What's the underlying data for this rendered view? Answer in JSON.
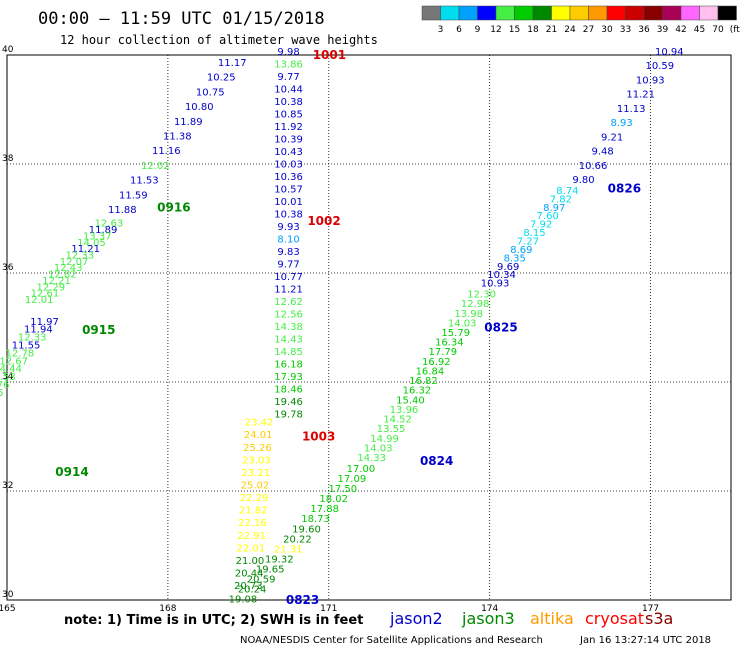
{
  "title": "00:00 — 11:59 UTC 01/15/2018",
  "subtitle": "12 hour collection of altimeter wave heights",
  "scale": {
    "labels": [
      "3",
      "6",
      "9",
      "12",
      "15",
      "18",
      "21",
      "24",
      "27",
      "30",
      "33",
      "36",
      "39",
      "42",
      "45",
      "70",
      "(ft)"
    ],
    "colors": [
      "#777777",
      "#00ddee",
      "#00a0ff",
      "#0000ff",
      "#44ee44",
      "#00cc00",
      "#008800",
      "#ffff00",
      "#ffcc00",
      "#ff9900",
      "#ff0000",
      "#cc0000",
      "#880000",
      "#aa0055",
      "#ff66ff",
      "#ffc0ee",
      "#000000"
    ]
  },
  "axes": {
    "x_ticks": [
      "165",
      "168",
      "171",
      "174",
      "177"
    ],
    "y_ticks": [
      "30",
      "32",
      "34",
      "36",
      "38",
      "40"
    ]
  },
  "note": "note:  1) Time is in UTC;  2) SWH is in feet",
  "satellites": [
    {
      "name": "jason2",
      "color": "#0000cc"
    },
    {
      "name": "jason3",
      "color": "#008800"
    },
    {
      "name": "altika",
      "color": "#ff9900"
    },
    {
      "name": "cryosat",
      "color": "#ff0000"
    },
    {
      "name": "s3a",
      "color": "#880000"
    }
  ],
  "footer_left": "NOAA/NESDIS Center for Satellite Applications and Research",
  "footer_right": "Jan 16 13:27:14 UTC 2018",
  "chart_data": {
    "type": "table",
    "x_range": [
      165,
      178.5
    ],
    "y_range": [
      30,
      40
    ],
    "pass_labels": [
      {
        "text": "1001",
        "lon": 170.7,
        "lat": 40.0,
        "color": "#dd0000"
      },
      {
        "text": "1002",
        "lon": 170.6,
        "lat": 36.95,
        "color": "#dd0000"
      },
      {
        "text": "1003",
        "lon": 170.5,
        "lat": 33.0,
        "color": "#dd0000"
      },
      {
        "text": "0916",
        "lon": 167.8,
        "lat": 37.2,
        "color": "#008800"
      },
      {
        "text": "0915",
        "lon": 166.4,
        "lat": 34.95,
        "color": "#008800"
      },
      {
        "text": "0914",
        "lon": 165.9,
        "lat": 32.35,
        "color": "#008800"
      },
      {
        "text": "0826",
        "lon": 176.2,
        "lat": 37.55,
        "color": "#0000cc"
      },
      {
        "text": "0825",
        "lon": 173.9,
        "lat": 35.0,
        "color": "#0000cc"
      },
      {
        "text": "0824",
        "lon": 172.7,
        "lat": 32.55,
        "color": "#0000cc"
      },
      {
        "text": "0823",
        "lon": 170.2,
        "lat": 30.0,
        "color": "#0000cc"
      }
    ],
    "tracks": [
      {
        "id": "t1",
        "lon0": 170.25,
        "lat0": 40.0,
        "lon1": 170.25,
        "lat1": 33.35,
        "values": [
          [
            "9.98",
            "#0000cc"
          ],
          [
            "13.86",
            "#44ee44"
          ],
          [
            "9.77",
            "#0000cc"
          ],
          [
            "10.44",
            "#0000cc"
          ],
          [
            "10.38",
            "#0000cc"
          ],
          [
            "10.85",
            "#0000cc"
          ],
          [
            "11.92",
            "#0000cc"
          ],
          [
            "10.39",
            "#0000cc"
          ],
          [
            "10.43",
            "#0000cc"
          ],
          [
            "10.03",
            "#0000cc"
          ],
          [
            "10.36",
            "#0000cc"
          ],
          [
            "10.57",
            "#0000cc"
          ],
          [
            "10.01",
            "#0000cc"
          ],
          [
            "10.38",
            "#0000cc"
          ],
          [
            "9.93",
            "#0000cc"
          ],
          [
            "8.10",
            "#00a0ff"
          ],
          [
            "9.83",
            "#0000cc"
          ],
          [
            "9.77",
            "#0000cc"
          ],
          [
            "10.77",
            "#0000cc"
          ],
          [
            "11.21",
            "#0000cc"
          ],
          [
            "12.62",
            "#44ee44"
          ],
          [
            "12.56",
            "#44ee44"
          ],
          [
            "14.38",
            "#44ee44"
          ],
          [
            "14.43",
            "#44ee44"
          ],
          [
            "14.85",
            "#44ee44"
          ],
          [
            "16.18",
            "#00cc00"
          ],
          [
            "17.93",
            "#00cc00"
          ],
          [
            "18.46",
            "#00cc00"
          ],
          [
            "19.46",
            "#008800"
          ],
          [
            "19.78",
            "#008800"
          ]
        ]
      },
      {
        "id": "t2",
        "lon0": 169.7,
        "lat0": 33.2,
        "lon1": 169.5,
        "lat1": 30.2,
        "values": [
          [
            "23.42",
            "#ffff00"
          ],
          [
            "24.01",
            "#ffcc00"
          ],
          [
            "25.26",
            "#ffcc00"
          ],
          [
            "23.03",
            "#ffff00"
          ],
          [
            "23.21",
            "#ffff00"
          ],
          [
            "25.02",
            "#ffcc00"
          ],
          [
            "22.29",
            "#ffff00"
          ],
          [
            "21.82",
            "#ffff00"
          ],
          [
            "22.16",
            "#ffff00"
          ],
          [
            "22.91",
            "#ffff00"
          ],
          [
            "22.01",
            "#ffff00"
          ],
          [
            "21.00",
            "#008800"
          ],
          [
            "20.44",
            "#008800"
          ],
          [
            "20.73",
            "#008800"
          ]
        ]
      },
      {
        "id": "t3",
        "lon0": 169.2,
        "lat0": 39.8,
        "lon1": 167.15,
        "lat1": 37.1,
        "values": [
          [
            "11.17",
            "#0000cc"
          ],
          [
            "10.25",
            "#0000cc"
          ],
          [
            "10.75",
            "#0000cc"
          ],
          [
            "10.80",
            "#0000cc"
          ],
          [
            "11.89",
            "#0000cc"
          ],
          [
            "11.38",
            "#0000cc"
          ],
          [
            "11.16",
            "#0000cc"
          ],
          [
            "12.02",
            "#44ee44"
          ],
          [
            "11.53",
            "#0000cc"
          ],
          [
            "11.59",
            "#0000cc"
          ],
          [
            "11.88",
            "#0000cc"
          ]
        ]
      },
      {
        "id": "t4",
        "lon0": 166.9,
        "lat0": 36.85,
        "lon1": 165.6,
        "lat1": 35.45,
        "values": [
          [
            "12.63",
            "#44ee44"
          ],
          [
            "11.89",
            "#0000cc"
          ],
          [
            "13.37",
            "#44ee44"
          ],
          [
            "14.05",
            "#44ee44"
          ],
          [
            "11.21",
            "#0000cc"
          ],
          [
            "12.33",
            "#44ee44"
          ],
          [
            "12.07",
            "#44ee44"
          ],
          [
            "12.43",
            "#44ee44"
          ],
          [
            "12.82",
            "#44ee44"
          ],
          [
            "12.21",
            "#44ee44"
          ],
          [
            "12.29",
            "#44ee44"
          ],
          [
            "12.61",
            "#44ee44"
          ],
          [
            "12.01",
            "#44ee44"
          ]
        ]
      },
      {
        "id": "t5",
        "lon0": 165.7,
        "lat0": 35.05,
        "lon1": 164.55,
        "lat1": 33.6,
        "values": [
          [
            "11.97",
            "#0000cc"
          ],
          [
            "11.94",
            "#0000cc"
          ],
          [
            "12.33",
            "#44ee44"
          ],
          [
            "11.55",
            "#0000cc"
          ],
          [
            "12.78",
            "#44ee44"
          ],
          [
            "12.67",
            "#44ee44"
          ],
          [
            "14.44",
            "#44ee44"
          ],
          [
            "14.53",
            "#44ee44"
          ],
          [
            "12.76",
            "#44ee44"
          ],
          [
            "14.26",
            "#44ee44"
          ],
          [
            "15.13",
            "#00cc00"
          ]
        ]
      },
      {
        "id": "t6",
        "lon0": 177.35,
        "lat0": 40.0,
        "lon1": 175.75,
        "lat1": 37.65,
        "values": [
          [
            "10.94",
            "#0000cc"
          ],
          [
            "10.59",
            "#0000cc"
          ],
          [
            "10.93",
            "#0000cc"
          ],
          [
            "11.21",
            "#0000cc"
          ],
          [
            "11.13",
            "#0000cc"
          ],
          [
            "8.93",
            "#00a0ff"
          ],
          [
            "9.21",
            "#0000cc"
          ],
          [
            "9.48",
            "#0000cc"
          ],
          [
            "10.66",
            "#0000cc"
          ],
          [
            "9.80",
            "#0000cc"
          ]
        ]
      },
      {
        "id": "t7",
        "lon0": 175.45,
        "lat0": 37.45,
        "lon1": 174.1,
        "lat1": 35.75,
        "values": [
          [
            "8.74",
            "#00ddee"
          ],
          [
            "7.82",
            "#00ddee"
          ],
          [
            "8.97",
            "#00a0ff"
          ],
          [
            "7.60",
            "#00ddee"
          ],
          [
            "7.92",
            "#00ddee"
          ],
          [
            "8.15",
            "#00ddee"
          ],
          [
            "7.27",
            "#00ddee"
          ],
          [
            "8.69",
            "#00a0ff"
          ],
          [
            "8.35",
            "#00a0ff"
          ],
          [
            "9.69",
            "#0000cc"
          ],
          [
            "10.34",
            "#0000cc"
          ],
          [
            "10.93",
            "#0000cc"
          ]
        ]
      },
      {
        "id": "t8",
        "lon0": 173.85,
        "lat0": 35.55,
        "lon1": 171.8,
        "lat1": 32.55,
        "values": [
          [
            "12.30",
            "#44ee44"
          ],
          [
            "12.98",
            "#44ee44"
          ],
          [
            "13.98",
            "#44ee44"
          ],
          [
            "14.03",
            "#44ee44"
          ],
          [
            "15.79",
            "#00cc00"
          ],
          [
            "16.34",
            "#00cc00"
          ],
          [
            "17.79",
            "#00cc00"
          ],
          [
            "16.92",
            "#00cc00"
          ],
          [
            "16.84",
            "#00cc00"
          ],
          [
            "16.82",
            "#00cc00"
          ],
          [
            "16.32",
            "#00cc00"
          ],
          [
            "15.40",
            "#00cc00"
          ],
          [
            "13.96",
            "#44ee44"
          ],
          [
            "14.52",
            "#44ee44"
          ],
          [
            "13.55",
            "#44ee44"
          ],
          [
            "14.99",
            "#44ee44"
          ],
          [
            "14.03",
            "#44ee44"
          ],
          [
            "14.33",
            "#44ee44"
          ]
        ]
      },
      {
        "id": "t9",
        "lon0": 171.6,
        "lat0": 32.35,
        "lon1": 169.4,
        "lat1": 29.95,
        "values": [
          [
            "17.00",
            "#00cc00"
          ],
          [
            "17.09",
            "#00cc00"
          ],
          [
            "17.50",
            "#00cc00"
          ],
          [
            "18.02",
            "#00cc00"
          ],
          [
            "17.88",
            "#00cc00"
          ],
          [
            "18.73",
            "#00cc00"
          ],
          [
            "19.60",
            "#008800"
          ],
          [
            "20.22",
            "#008800"
          ],
          [
            "21.31",
            "#ffff00"
          ],
          [
            "19.32",
            "#008800"
          ],
          [
            "19.65",
            "#008800"
          ],
          [
            "20.59",
            "#008800"
          ],
          [
            "20.24",
            "#008800"
          ],
          [
            "19.08",
            "#008800"
          ]
        ]
      }
    ]
  }
}
